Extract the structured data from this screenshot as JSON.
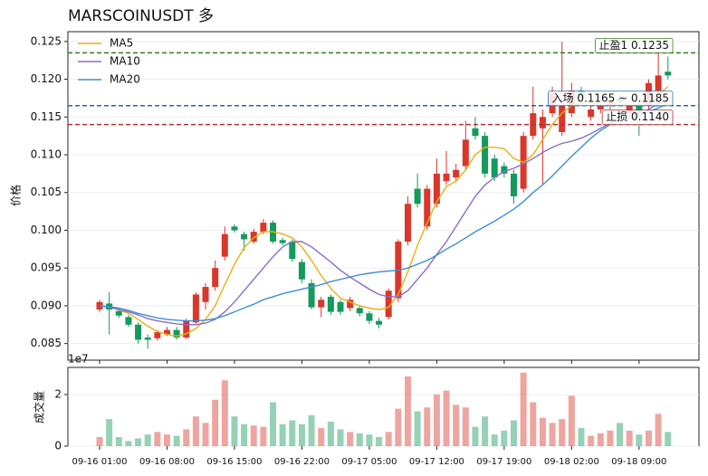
{
  "chart_data": {
    "type": "candlestick",
    "title": "MARSCOINUSDT 多",
    "ylabel": "价格",
    "categories": [
      "09-16 01:00",
      null,
      null,
      null,
      null,
      null,
      null,
      "09-16 08:00",
      null,
      null,
      null,
      null,
      null,
      null,
      "09-16 15:00",
      null,
      null,
      null,
      null,
      null,
      null,
      "09-16 22:00",
      null,
      null,
      null,
      null,
      null,
      null,
      "09-17 05:00",
      null,
      null,
      null,
      null,
      null,
      null,
      "09-17 12:00",
      null,
      null,
      null,
      null,
      null,
      null,
      "09-17 19:00",
      null,
      null,
      null,
      null,
      null,
      null,
      "09-18 02:00",
      null,
      null,
      null,
      null,
      null,
      null,
      "09-18 09:00",
      null,
      null,
      null
    ],
    "open": [
      0.0895,
      0.0903,
      0.0893,
      0.0885,
      0.0875,
      0.0858,
      0.0857,
      0.0862,
      0.0868,
      0.0858,
      0.0878,
      0.0905,
      0.0925,
      0.0965,
      0.1005,
      0.0995,
      0.0985,
      0.0998,
      0.101,
      0.0987,
      0.0985,
      0.0958,
      0.093,
      0.0898,
      0.0912,
      0.0905,
      0.0897,
      0.0897,
      0.089,
      0.088,
      0.0885,
      0.091,
      0.0985,
      0.1055,
      0.1005,
      0.1035,
      0.1065,
      0.107,
      0.1085,
      0.1135,
      0.1125,
      0.1095,
      0.1085,
      0.1075,
      0.1055,
      0.1125,
      0.1135,
      0.1155,
      0.113,
      0.1155,
      0.1185,
      0.115,
      0.116,
      0.1165,
      0.1175,
      0.1155,
      0.1165,
      0.1165,
      0.1185,
      0.121
    ],
    "high": [
      0.0908,
      0.0918,
      0.0896,
      0.0888,
      0.0878,
      0.0862,
      0.0868,
      0.0872,
      0.0872,
      0.0883,
      0.0918,
      0.093,
      0.096,
      0.1005,
      0.1008,
      0.0998,
      0.1002,
      0.1015,
      0.1013,
      0.099,
      0.0988,
      0.0962,
      0.0935,
      0.0912,
      0.0915,
      0.0908,
      0.0912,
      0.09,
      0.0893,
      0.0884,
      0.0923,
      0.0988,
      0.1045,
      0.1075,
      0.106,
      0.1095,
      0.1105,
      0.1088,
      0.1145,
      0.115,
      0.113,
      0.11,
      0.109,
      0.108,
      0.113,
      0.119,
      0.116,
      0.119,
      0.125,
      0.1195,
      0.119,
      0.1165,
      0.117,
      0.1178,
      0.118,
      0.117,
      0.117,
      0.12,
      0.1235,
      0.123
    ],
    "low": [
      0.0892,
      0.0862,
      0.0884,
      0.0872,
      0.085,
      0.0843,
      0.0854,
      0.086,
      0.0855,
      0.0856,
      0.0875,
      0.0895,
      0.092,
      0.096,
      0.0997,
      0.0973,
      0.0982,
      0.0995,
      0.0982,
      0.098,
      0.0958,
      0.093,
      0.0895,
      0.0885,
      0.0888,
      0.0888,
      0.0893,
      0.0886,
      0.0876,
      0.087,
      0.0882,
      0.0905,
      0.098,
      0.103,
      0.1,
      0.103,
      0.106,
      0.1065,
      0.108,
      0.112,
      0.107,
      0.1065,
      0.107,
      0.1035,
      0.105,
      0.112,
      0.106,
      0.115,
      0.1125,
      0.115,
      0.117,
      0.1145,
      0.1155,
      0.116,
      0.1165,
      0.115,
      0.1125,
      0.116,
      0.118,
      0.12
    ],
    "close": [
      0.0905,
      0.0895,
      0.0887,
      0.0875,
      0.0855,
      0.0855,
      0.0865,
      0.0868,
      0.0858,
      0.088,
      0.0915,
      0.0925,
      0.095,
      0.0995,
      0.1,
      0.0988,
      0.0998,
      0.101,
      0.0985,
      0.0983,
      0.0962,
      0.0935,
      0.0898,
      0.0908,
      0.0892,
      0.0892,
      0.0908,
      0.089,
      0.088,
      0.0875,
      0.092,
      0.0985,
      0.1035,
      0.1035,
      0.1055,
      0.1075,
      0.1075,
      0.108,
      0.112,
      0.1125,
      0.1075,
      0.107,
      0.1075,
      0.1045,
      0.1125,
      0.1155,
      0.115,
      0.1182,
      0.1165,
      0.1185,
      0.1175,
      0.116,
      0.1165,
      0.117,
      0.117,
      0.1165,
      0.1155,
      0.1195,
      0.1205,
      0.1205
    ],
    "up_color": "#d9372b",
    "down_color": "#139a5c",
    "ylim": [
      0.0828,
      0.1263
    ],
    "yticks": [
      0.085,
      {
        "value": 0.09,
        "label": "0.090"
      },
      0.095,
      {
        "value": 0.1,
        "label": "0.100"
      },
      0.105,
      {
        "value": 0.11,
        "label": "0.110"
      },
      0.115,
      {
        "value": 0.12,
        "label": "0.120"
      },
      0.125
    ],
    "legend": "upper left",
    "series": [
      {
        "name": "MA5",
        "color": "#e8b010",
        "values": [
          0.09,
          0.0898,
          0.0895,
          0.089,
          0.0882,
          0.0873,
          0.0866,
          0.0862,
          0.086,
          0.0863,
          0.087,
          0.0882,
          0.09,
          0.0928,
          0.0955,
          0.0977,
          0.099,
          0.0998,
          0.0998,
          0.0995,
          0.099,
          0.0978,
          0.096,
          0.094,
          0.0923,
          0.091,
          0.0905,
          0.09,
          0.0897,
          0.0895,
          0.0898,
          0.0915,
          0.0945,
          0.098,
          0.101,
          0.1038,
          0.1058,
          0.1065,
          0.108,
          0.11,
          0.111,
          0.111,
          0.1108,
          0.1095,
          0.109,
          0.11,
          0.112,
          0.114,
          0.1155,
          0.1165,
          0.1168,
          0.117,
          0.1168,
          0.1167,
          0.1167,
          0.1166,
          0.1166,
          0.117,
          0.118,
          0.119
        ]
      },
      {
        "name": "MA10",
        "color": "#8a6cc9",
        "values": [
          0.09,
          0.0898,
          0.0895,
          0.0892,
          0.0888,
          0.0883,
          0.088,
          0.0878,
          0.0876,
          0.0875,
          0.0875,
          0.0877,
          0.0882,
          0.0892,
          0.0905,
          0.092,
          0.0935,
          0.095,
          0.0965,
          0.0978,
          0.0985,
          0.0985,
          0.0978,
          0.0968,
          0.0958,
          0.0947,
          0.0938,
          0.093,
          0.0922,
          0.0915,
          0.0912,
          0.0912,
          0.092,
          0.0935,
          0.095,
          0.0968,
          0.0985,
          0.1005,
          0.1025,
          0.1045,
          0.106,
          0.107,
          0.1078,
          0.1082,
          0.1088,
          0.1095,
          0.1103,
          0.111,
          0.1115,
          0.1118,
          0.1122,
          0.1128,
          0.1135,
          0.1142,
          0.1148,
          0.1152,
          0.1155,
          0.116,
          0.1168,
          0.1175
        ]
      },
      {
        "name": "MA20",
        "color": "#3d8fd6",
        "values": [
          0.09,
          0.0899,
          0.0897,
          0.0894,
          0.089,
          0.0887,
          0.0884,
          0.0882,
          0.0881,
          0.088,
          0.088,
          0.0881,
          0.0883,
          0.0887,
          0.0892,
          0.0897,
          0.0902,
          0.0908,
          0.0912,
          0.0916,
          0.0919,
          0.0922,
          0.0925,
          0.0928,
          0.0932,
          0.0935,
          0.0938,
          0.0941,
          0.0943,
          0.0945,
          0.0946,
          0.0947,
          0.095,
          0.0955,
          0.096,
          0.0967,
          0.0975,
          0.0982,
          0.099,
          0.0998,
          0.1005,
          0.1012,
          0.102,
          0.1028,
          0.1038,
          0.105,
          0.106,
          0.1072,
          0.1085,
          0.1098,
          0.111,
          0.1122,
          0.1132,
          0.114,
          0.1145,
          0.1148,
          0.1152,
          0.1157,
          0.1162,
          0.1168
        ]
      }
    ],
    "levels": [
      {
        "label": "止盈1 0.1235",
        "value": 0.1235,
        "color": "#3a7a1e"
      },
      {
        "label": "入场 0.1165 ~ 0.1185",
        "value": 0.1165,
        "color": "#2a66a8"
      },
      {
        "label": "止损 0.1140",
        "value": 0.114,
        "color": "#b03030"
      }
    ],
    "volume": {
      "ylabel": "成交量",
      "offset_label": "1e7",
      "ylim": [
        0,
        3.05
      ],
      "yticks": [
        0,
        2
      ],
      "values": [
        0.35,
        1.05,
        0.35,
        0.2,
        0.3,
        0.45,
        0.55,
        0.45,
        0.4,
        0.65,
        1.15,
        0.9,
        1.8,
        2.55,
        1.15,
        0.85,
        0.8,
        0.75,
        1.7,
        0.85,
        1.0,
        0.85,
        1.2,
        0.7,
        0.95,
        0.65,
        0.55,
        0.5,
        0.45,
        0.35,
        0.55,
        1.45,
        2.7,
        1.35,
        1.5,
        2.0,
        2.15,
        1.6,
        1.5,
        0.75,
        1.15,
        0.45,
        0.6,
        1.0,
        2.85,
        1.7,
        1.1,
        0.9,
        1.05,
        1.95,
        0.7,
        0.4,
        0.5,
        0.6,
        0.9,
        0.6,
        0.45,
        0.6,
        1.25,
        0.55
      ]
    }
  }
}
